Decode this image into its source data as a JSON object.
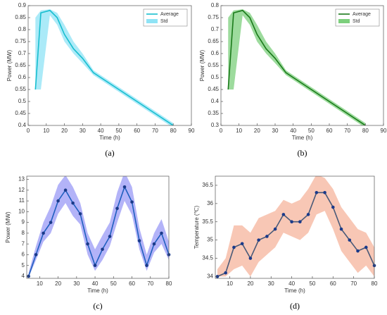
{
  "chart_data": [
    {
      "type": "line",
      "label": "(a)",
      "xlabel": "Time (h)",
      "ylabel": "Power (MW)",
      "xlim": [
        0,
        90
      ],
      "xticks": [
        0,
        10,
        20,
        30,
        40,
        50,
        60,
        70,
        80,
        90
      ],
      "ylim": [
        0.4,
        0.9
      ],
      "yticks": [
        0.4,
        0.45,
        0.5,
        0.55,
        0.6,
        0.65,
        0.7,
        0.75,
        0.8,
        0.85,
        0.9
      ],
      "x": [
        4,
        7,
        12,
        16,
        20,
        25,
        30,
        36,
        40,
        50,
        60,
        70,
        80
      ],
      "series": [
        {
          "name": "Average",
          "color": "#17becf",
          "values": [
            0.55,
            0.87,
            0.88,
            0.85,
            0.78,
            0.72,
            0.68,
            0.62,
            0.6,
            0.55,
            0.5,
            0.45,
            0.4
          ]
        }
      ],
      "band": {
        "name": "Std",
        "color": "#8fe3f5",
        "upper": [
          0.85,
          0.88,
          0.885,
          0.87,
          0.82,
          0.75,
          0.7,
          0.63,
          0.61,
          0.56,
          0.51,
          0.46,
          0.41
        ],
        "lower": [
          0.55,
          0.55,
          0.86,
          0.82,
          0.75,
          0.7,
          0.66,
          0.61,
          0.59,
          0.54,
          0.49,
          0.44,
          0.39
        ]
      },
      "legend": "upper right",
      "markers": false
    },
    {
      "type": "line",
      "label": "(b)",
      "xlabel": "Time (h)",
      "ylabel": "Power (MW)",
      "xlim": [
        0,
        90
      ],
      "xticks": [
        0,
        10,
        20,
        30,
        40,
        50,
        60,
        70,
        80,
        90
      ],
      "ylim": [
        0.3,
        0.8
      ],
      "yticks": [
        0.3,
        0.35,
        0.4,
        0.45,
        0.5,
        0.55,
        0.6,
        0.65,
        0.7,
        0.75,
        0.8
      ],
      "x": [
        4,
        7,
        12,
        16,
        20,
        25,
        30,
        36,
        40,
        50,
        60,
        70,
        80
      ],
      "series": [
        {
          "name": "Average",
          "color": "#1a7a1a",
          "values": [
            0.45,
            0.77,
            0.78,
            0.75,
            0.68,
            0.62,
            0.58,
            0.52,
            0.5,
            0.45,
            0.4,
            0.35,
            0.3
          ]
        }
      ],
      "band": {
        "name": "Std",
        "color": "#7ccf7c",
        "upper": [
          0.75,
          0.78,
          0.785,
          0.77,
          0.72,
          0.65,
          0.6,
          0.53,
          0.51,
          0.46,
          0.41,
          0.36,
          0.31
        ],
        "lower": [
          0.45,
          0.45,
          0.76,
          0.72,
          0.65,
          0.6,
          0.56,
          0.51,
          0.49,
          0.44,
          0.39,
          0.34,
          0.29
        ]
      },
      "legend": "upper right",
      "markers": false
    },
    {
      "type": "line",
      "label": "(c)",
      "xlabel": "Time (h)",
      "ylabel": "Power (MW)",
      "xlim": [
        3,
        80
      ],
      "xticks": [
        10,
        20,
        30,
        40,
        50,
        60,
        70,
        80
      ],
      "ylim": [
        3.8,
        13.3
      ],
      "yticks": [
        4,
        5,
        6,
        7,
        8,
        9,
        10,
        11,
        12,
        13
      ],
      "x": [
        4,
        8,
        12,
        16,
        20,
        24,
        28,
        32,
        36,
        40,
        44,
        48,
        52,
        56,
        60,
        64,
        68,
        72,
        76,
        80
      ],
      "series": [
        {
          "color": "#1f5fbf",
          "values": [
            4,
            6,
            8,
            9,
            11,
            12,
            10.8,
            9.8,
            7,
            5,
            6.5,
            7.7,
            10.3,
            12.3,
            10.9,
            7.3,
            5,
            7,
            8,
            6
          ]
        }
      ],
      "band": {
        "color": "#9a9af5",
        "upper": [
          4.3,
          6.8,
          9,
          10.5,
          12.5,
          13.4,
          12.3,
          10.8,
          8,
          6.5,
          7.8,
          9,
          11.8,
          13.7,
          12.3,
          8.5,
          6,
          8,
          9.3,
          7.2
        ],
        "lower": [
          3.9,
          5.5,
          7.2,
          8,
          9.8,
          10.8,
          9.6,
          8.8,
          6,
          4.5,
          5.5,
          6.8,
          9,
          11,
          9.7,
          6.5,
          4.5,
          6.2,
          7,
          5.5
        ]
      },
      "markers": true
    },
    {
      "type": "line",
      "label": "(d)",
      "xlabel": "Time (h)",
      "ylabel": "Temperature (℃)",
      "xlim": [
        3,
        80
      ],
      "xticks": [
        10,
        20,
        30,
        40,
        50,
        60,
        70,
        80
      ],
      "ylim": [
        33.95,
        36.75
      ],
      "yticks": [
        34,
        34.5,
        35,
        35.5,
        36,
        36.5
      ],
      "x": [
        4,
        8,
        12,
        16,
        20,
        24,
        28,
        32,
        36,
        40,
        44,
        48,
        52,
        56,
        60,
        64,
        68,
        72,
        76,
        80
      ],
      "series": [
        {
          "color": "#4a5a78",
          "values": [
            34,
            34.1,
            34.8,
            34.9,
            34.5,
            35,
            35.1,
            35.3,
            35.7,
            35.5,
            35.5,
            35.7,
            36.3,
            36.3,
            35.9,
            35.3,
            35,
            34.7,
            34.8,
            34.3
          ]
        }
      ],
      "band": {
        "color": "#f6b49c",
        "upper": [
          34.2,
          34.5,
          35.4,
          35.4,
          35.2,
          35.6,
          35.7,
          35.8,
          36.1,
          36,
          36.1,
          36.4,
          36.8,
          36.7,
          36.4,
          35.9,
          35.6,
          35.3,
          35.2,
          34.8
        ],
        "lower": [
          34,
          34,
          34.2,
          34.3,
          34,
          34.4,
          34.6,
          34.8,
          35.2,
          35.1,
          35,
          35.2,
          35.7,
          35.8,
          35.3,
          34.7,
          34.4,
          34.1,
          34.3,
          34
        ]
      },
      "markers": true
    }
  ]
}
